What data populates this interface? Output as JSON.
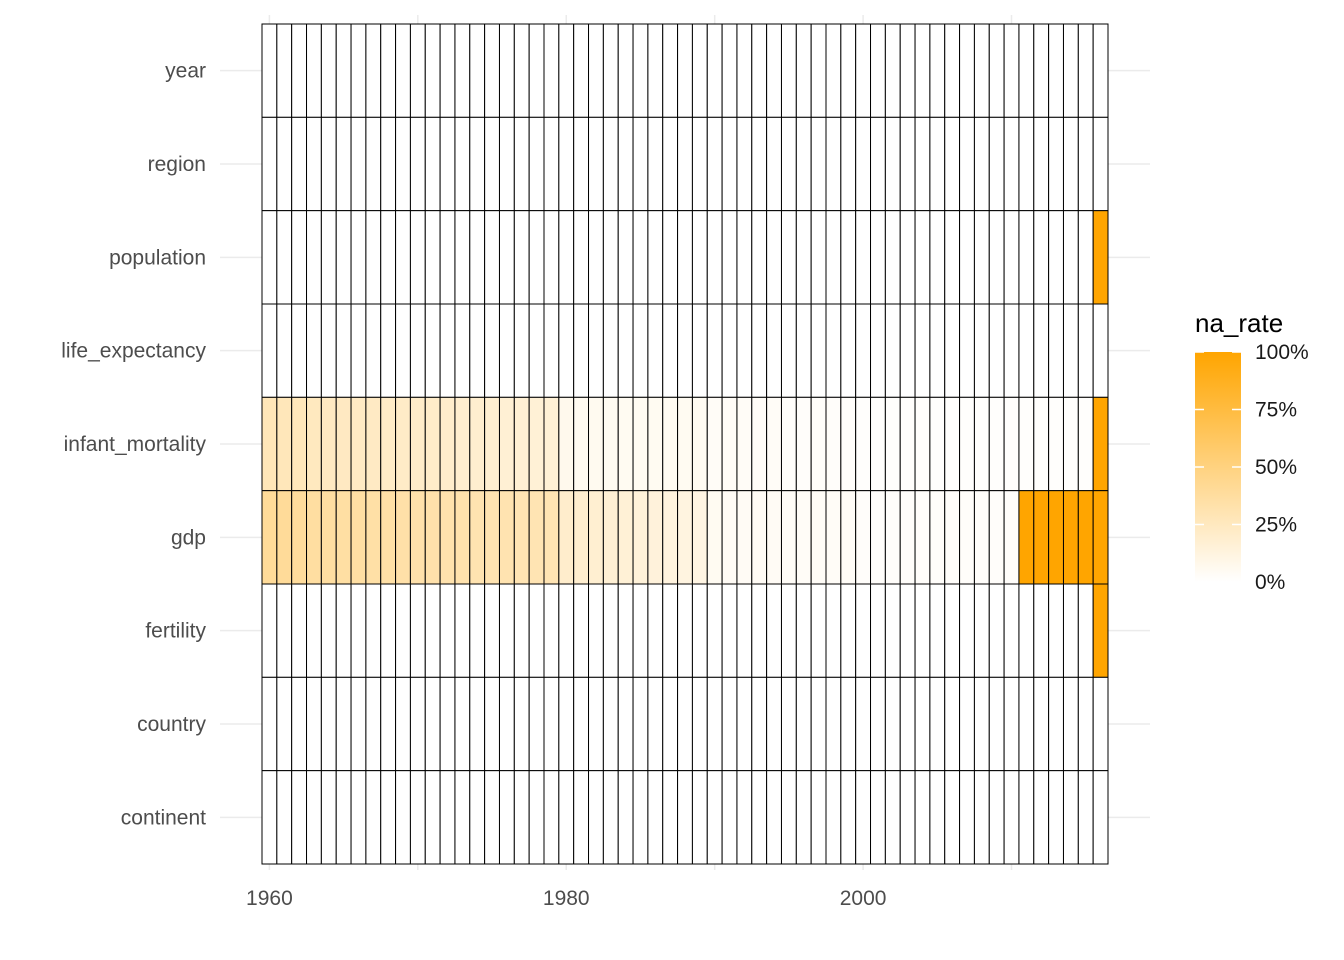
{
  "chart_data": {
    "type": "heatmap",
    "title": "",
    "xlabel": "",
    "ylabel": "",
    "x_start": 1960,
    "x_end": 2016,
    "x_ticks": [
      1960,
      1980,
      2000
    ],
    "x_tick_labels": [
      "1960",
      "1980",
      "2000"
    ],
    "variables": [
      "year",
      "region",
      "population",
      "life_expectancy",
      "infant_mortality",
      "gdp",
      "fertility",
      "country",
      "continent"
    ],
    "zero_rate_variables": [
      "year",
      "region",
      "life_expectancy",
      "country",
      "continent"
    ],
    "series": [
      {
        "variable": "population",
        "rates": [
          [
            2016,
            1.0
          ]
        ]
      },
      {
        "variable": "life_expectancy",
        "rates": [
          [
            2016,
            0.0
          ]
        ]
      },
      {
        "variable": "infant_mortality",
        "rates": [
          [
            1960,
            0.28
          ],
          [
            1961,
            0.27
          ],
          [
            1962,
            0.27
          ],
          [
            1963,
            0.25
          ],
          [
            1964,
            0.24
          ],
          [
            1965,
            0.24
          ],
          [
            1966,
            0.23
          ],
          [
            1967,
            0.23
          ],
          [
            1968,
            0.22
          ],
          [
            1969,
            0.22
          ],
          [
            1970,
            0.21
          ],
          [
            1971,
            0.21
          ],
          [
            1972,
            0.2
          ],
          [
            1973,
            0.19
          ],
          [
            1974,
            0.19
          ],
          [
            1975,
            0.18
          ],
          [
            1976,
            0.17
          ],
          [
            1977,
            0.17
          ],
          [
            1978,
            0.16
          ],
          [
            1979,
            0.16
          ],
          [
            1980,
            0.07
          ],
          [
            1981,
            0.06
          ],
          [
            1982,
            0.06
          ],
          [
            1983,
            0.05
          ],
          [
            1984,
            0.05
          ],
          [
            1985,
            0.05
          ],
          [
            1986,
            0.05
          ],
          [
            1987,
            0.05
          ],
          [
            1988,
            0.05
          ],
          [
            1989,
            0.05
          ],
          [
            1990,
            0.03
          ],
          [
            1991,
            0.03
          ],
          [
            1992,
            0.03
          ],
          [
            1993,
            0.03
          ],
          [
            1994,
            0.03
          ],
          [
            1995,
            0.02
          ],
          [
            1996,
            0.02
          ],
          [
            1997,
            0.02
          ],
          [
            1998,
            0.02
          ],
          [
            1999,
            0.02
          ],
          [
            2000,
            0.01
          ],
          [
            2001,
            0.01
          ],
          [
            2002,
            0.01
          ],
          [
            2003,
            0.01
          ],
          [
            2004,
            0.01
          ],
          [
            2005,
            0.01
          ],
          [
            2006,
            0.01
          ],
          [
            2007,
            0.01
          ],
          [
            2008,
            0.01
          ],
          [
            2009,
            0.01
          ],
          [
            2010,
            0.01
          ],
          [
            2011,
            0.01
          ],
          [
            2012,
            0.01
          ],
          [
            2013,
            0.01
          ],
          [
            2014,
            0.01
          ],
          [
            2015,
            0.01
          ],
          [
            2016,
            1.0
          ]
        ]
      },
      {
        "variable": "gdp",
        "rates": [
          [
            1960,
            0.4
          ],
          [
            1961,
            0.4
          ],
          [
            1962,
            0.39
          ],
          [
            1963,
            0.37
          ],
          [
            1964,
            0.37
          ],
          [
            1965,
            0.36
          ],
          [
            1966,
            0.36
          ],
          [
            1967,
            0.35
          ],
          [
            1968,
            0.35
          ],
          [
            1969,
            0.34
          ],
          [
            1970,
            0.33
          ],
          [
            1971,
            0.33
          ],
          [
            1972,
            0.32
          ],
          [
            1973,
            0.32
          ],
          [
            1974,
            0.31
          ],
          [
            1975,
            0.31
          ],
          [
            1976,
            0.31
          ],
          [
            1977,
            0.3
          ],
          [
            1978,
            0.3
          ],
          [
            1979,
            0.3
          ],
          [
            1980,
            0.2
          ],
          [
            1981,
            0.19
          ],
          [
            1982,
            0.18
          ],
          [
            1983,
            0.17
          ],
          [
            1984,
            0.16
          ],
          [
            1985,
            0.15
          ],
          [
            1986,
            0.14
          ],
          [
            1987,
            0.13
          ],
          [
            1988,
            0.12
          ],
          [
            1989,
            0.11
          ],
          [
            1990,
            0.05
          ],
          [
            1991,
            0.04
          ],
          [
            1992,
            0.04
          ],
          [
            1993,
            0.04
          ],
          [
            1994,
            0.04
          ],
          [
            1995,
            0.03
          ],
          [
            1996,
            0.03
          ],
          [
            1997,
            0.03
          ],
          [
            1998,
            0.03
          ],
          [
            1999,
            0.03
          ],
          [
            2000,
            0.02
          ],
          [
            2001,
            0.02
          ],
          [
            2002,
            0.02
          ],
          [
            2003,
            0.02
          ],
          [
            2004,
            0.02
          ],
          [
            2005,
            0.02
          ],
          [
            2006,
            0.02
          ],
          [
            2007,
            0.02
          ],
          [
            2008,
            0.02
          ],
          [
            2009,
            0.02
          ],
          [
            2010,
            0.02
          ],
          [
            2011,
            1.0
          ],
          [
            2012,
            1.0
          ],
          [
            2013,
            1.0
          ],
          [
            2014,
            1.0
          ],
          [
            2015,
            1.0
          ],
          [
            2016,
            1.0
          ]
        ]
      },
      {
        "variable": "fertility",
        "rates": [
          [
            2016,
            1.0
          ]
        ]
      }
    ],
    "color_low": "#ffffff",
    "color_high": "#ffa500",
    "grid": true,
    "legend": {
      "title": "na_rate",
      "position": "right",
      "breaks": [
        0,
        0.25,
        0.5,
        0.75,
        1.0
      ],
      "labels": [
        "0%",
        "25%",
        "50%",
        "75%",
        "100%"
      ]
    }
  }
}
